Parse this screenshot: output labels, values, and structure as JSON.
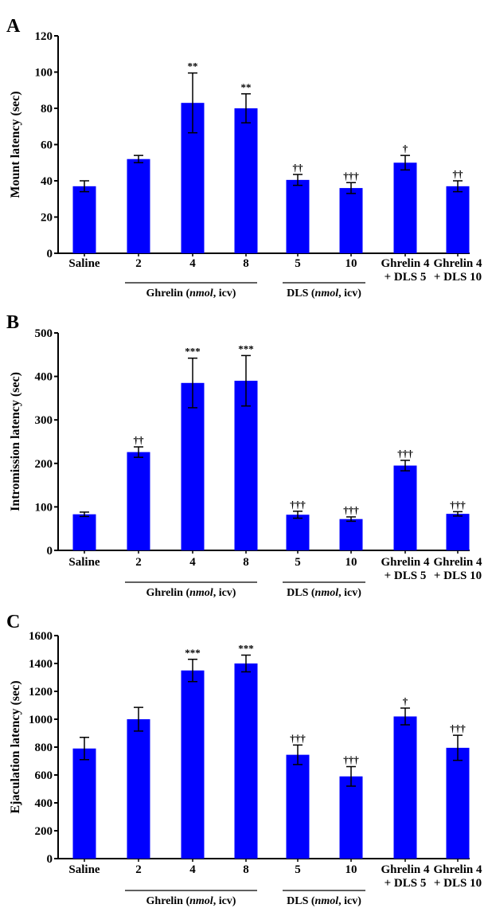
{
  "chart_data": [
    {
      "panel": "A",
      "type": "bar",
      "ylabel": "Mount latency (sec)",
      "ylim": [
        0,
        120
      ],
      "yticks": [
        0,
        20,
        40,
        60,
        80,
        100,
        120
      ],
      "categories": [
        "Saline",
        "2",
        "4",
        "8",
        "5",
        "10",
        "Ghrelin 4\n+ DLS 5",
        "Ghrelin 4\n+ DLS 10"
      ],
      "values": [
        37,
        52,
        83,
        80,
        40.5,
        36,
        50,
        37
      ],
      "errors": [
        3,
        2,
        16.5,
        8,
        3,
        3,
        4,
        3
      ],
      "significance": [
        "",
        "",
        "**",
        "**",
        "††",
        "†††",
        "†",
        "††"
      ],
      "groups": [
        {
          "label_pre": "Ghrelin (",
          "label_it": "nmol",
          "label_post": ", icv)",
          "from": 1,
          "to": 3
        },
        {
          "label_pre": "DLS (",
          "label_it": "nmol",
          "label_post": ", icv)",
          "from": 4,
          "to": 5
        }
      ],
      "bar_color": "#0000ff"
    },
    {
      "panel": "B",
      "type": "bar",
      "ylabel": "Intromission latency (sec)",
      "ylim": [
        0,
        500
      ],
      "yticks": [
        0,
        100,
        200,
        300,
        400,
        500
      ],
      "categories": [
        "Saline",
        "2",
        "4",
        "8",
        "5",
        "10",
        "Ghrelin 4\n+ DLS 5",
        "Ghrelin 4\n+ DLS 10"
      ],
      "values": [
        83,
        226,
        385,
        390,
        82,
        72,
        195,
        84
      ],
      "errors": [
        5,
        12,
        57,
        58,
        8,
        5,
        12,
        5
      ],
      "significance": [
        "",
        "††",
        "***",
        "***",
        "†††",
        "†††",
        "†††",
        "†††"
      ],
      "groups": [
        {
          "label_pre": "Ghrelin (",
          "label_it": "nmol",
          "label_post": ", icv)",
          "from": 1,
          "to": 3
        },
        {
          "label_pre": "DLS (",
          "label_it": "nmol",
          "label_post": ", icv)",
          "from": 4,
          "to": 5
        }
      ],
      "bar_color": "#0000ff"
    },
    {
      "panel": "C",
      "type": "bar",
      "ylabel": "Ejaculation latency (sec)",
      "ylim": [
        0,
        1600
      ],
      "yticks": [
        0,
        200,
        400,
        600,
        800,
        1000,
        1200,
        1400,
        1600
      ],
      "categories": [
        "Saline",
        "2",
        "4",
        "8",
        "5",
        "10",
        "Ghrelin 4\n+ DLS 5",
        "Ghrelin 4\n+ DLS 10"
      ],
      "values": [
        790,
        1000,
        1350,
        1400,
        745,
        590,
        1020,
        795
      ],
      "errors": [
        80,
        85,
        80,
        60,
        70,
        70,
        60,
        90
      ],
      "significance": [
        "",
        "",
        "***",
        "***",
        "†††",
        "†††",
        "†",
        "†††"
      ],
      "groups": [
        {
          "label_pre": "Ghrelin (",
          "label_it": "nmol",
          "label_post": ", icv)",
          "from": 1,
          "to": 3
        },
        {
          "label_pre": "DLS (",
          "label_it": "nmol",
          "label_post": ", icv)",
          "from": 4,
          "to": 5
        }
      ],
      "bar_color": "#0000ff"
    }
  ]
}
